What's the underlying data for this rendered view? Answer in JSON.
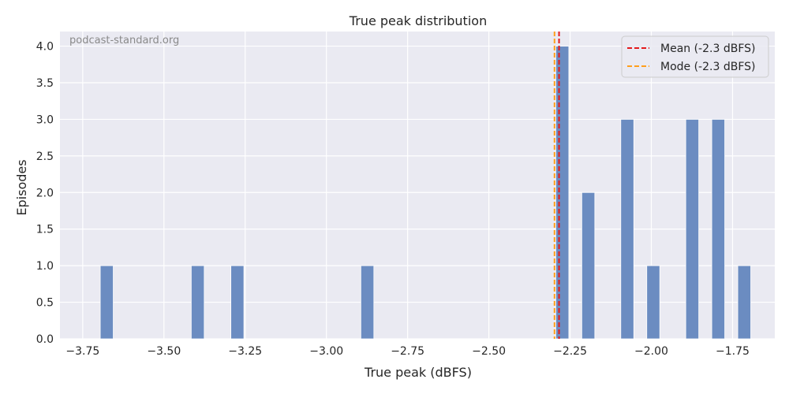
{
  "chart_data": {
    "type": "bar",
    "title": "True peak distribution",
    "xlabel": "True peak (dBFS)",
    "ylabel": "Episodes",
    "watermark": "podcast-standard.org",
    "xlim": [
      -3.82,
      -1.62
    ],
    "ylim": [
      0,
      4.2
    ],
    "x_ticks": [
      -3.75,
      -3.5,
      -3.25,
      -3.0,
      -2.75,
      -2.5,
      -2.25,
      -2.0,
      -1.75
    ],
    "x_tick_labels": [
      "−3.75",
      "−3.50",
      "−3.25",
      "−3.00",
      "−2.75",
      "−2.50",
      "−2.25",
      "−2.00",
      "−1.75"
    ],
    "y_ticks": [
      0,
      0.5,
      1.0,
      1.5,
      2.0,
      2.5,
      3.0,
      3.5,
      4.0
    ],
    "y_tick_labels": [
      "0.0",
      "0.5",
      "1.0",
      "1.5",
      "2.0",
      "2.5",
      "3.0",
      "3.5",
      "4.0"
    ],
    "bin_width": 0.04,
    "bins": [
      {
        "x": -3.676,
        "count": 1
      },
      {
        "x": -3.396,
        "count": 1
      },
      {
        "x": -3.274,
        "count": 1
      },
      {
        "x": -2.874,
        "count": 1
      },
      {
        "x": -2.274,
        "count": 4
      },
      {
        "x": -2.194,
        "count": 2
      },
      {
        "x": -2.074,
        "count": 3
      },
      {
        "x": -1.994,
        "count": 1
      },
      {
        "x": -1.874,
        "count": 3
      },
      {
        "x": -1.794,
        "count": 3
      },
      {
        "x": -1.714,
        "count": 1
      }
    ],
    "reference_lines": [
      {
        "name": "Mean (-2.3 dBFS)",
        "x": -2.284,
        "color": "#e41a1c",
        "style": "dashed"
      },
      {
        "name": "Mode (-2.3 dBFS)",
        "x": -2.298,
        "color": "#ff9f1c",
        "style": "dashed"
      }
    ],
    "legend_position": "top-right",
    "grid": true,
    "colors": {
      "bar": "#6b8cc1",
      "plot_bg": "#eaeaf2",
      "grid": "#ffffff"
    }
  }
}
